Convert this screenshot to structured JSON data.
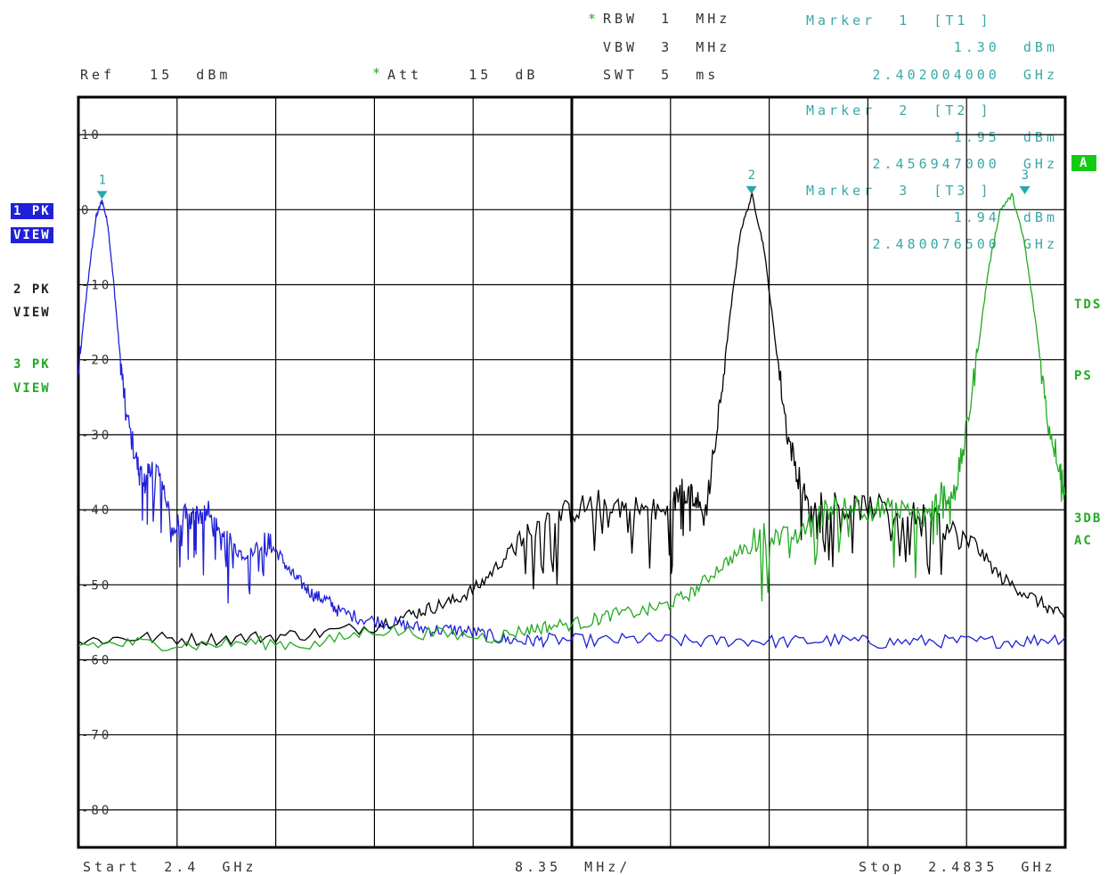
{
  "header": {
    "rbw_star": "*",
    "rbw": "RBW  1  MHz",
    "vbw": "VBW  3  MHz",
    "swt": "SWT  5  ms",
    "ref": "Ref   15  dBm",
    "att_star": "*",
    "att": "Att    15  dB"
  },
  "markers_readout": [
    {
      "label": "Marker  1  [T1 ]",
      "level": "1.30  dBm",
      "freq": "2.402004000  GHz"
    },
    {
      "label": "Marker  2  [T2 ]",
      "level": "1.95  dBm",
      "freq": "2.456947000  GHz"
    },
    {
      "label": "Marker  3  [T3 ]",
      "level": "1.94  dBm",
      "freq": "2.480076500  GHz"
    }
  ],
  "traces_panel": [
    {
      "label": "1 PK",
      "mode": "VIEW",
      "color": "#2020d8",
      "active": true
    },
    {
      "label": "2 PK",
      "mode": "VIEW",
      "color": "#000000",
      "active": false
    },
    {
      "label": "3 PK",
      "mode": "VIEW",
      "color": "#22aa22",
      "active": false
    }
  ],
  "right_panel": {
    "a": "A",
    "tds": "TDS",
    "ps": "PS",
    "db3": "3DB",
    "ac": "AC"
  },
  "footer": {
    "start": "Start  2.4  GHz",
    "span": "8.35  MHz/",
    "stop": "Stop  2.4835  GHz"
  },
  "chart_data": {
    "type": "line",
    "x_unit": "GHz",
    "y_unit": "dBm",
    "xlim": [
      2.4,
      2.4835
    ],
    "ylim": [
      -85,
      15
    ],
    "y_ticks": [
      10,
      0,
      -10,
      -20,
      -30,
      -40,
      -50,
      -60,
      -70,
      -80
    ],
    "y_tick_labels": [
      "10",
      "0",
      "-10",
      "-20",
      "-30",
      "-40",
      "-50",
      "-60",
      "-70",
      "-80"
    ],
    "grid": true,
    "series": [
      {
        "name": "1",
        "color": "#2020d8",
        "x": [
          2.4,
          2.4005,
          2.401,
          2.4015,
          2.402,
          2.4025,
          2.403,
          2.4035,
          2.404,
          2.405,
          2.4055,
          2.406,
          2.407,
          2.408,
          2.409,
          2.4095,
          2.41,
          2.411,
          2.412,
          2.413,
          2.414,
          2.415,
          2.416,
          2.417,
          2.418,
          2.419,
          2.42,
          2.421,
          2.422,
          2.424,
          2.426,
          2.428,
          2.43,
          2.432,
          2.434,
          2.436,
          2.438,
          2.44,
          2.444,
          2.448,
          2.452,
          2.456,
          2.46,
          2.464,
          2.468,
          2.472,
          2.476,
          2.48,
          2.4835
        ],
        "y": [
          -22,
          -14,
          -7,
          -1,
          1.3,
          -2,
          -10,
          -19,
          -27,
          -34,
          -37,
          -35,
          -35,
          -43,
          -41,
          -41.5,
          -40.5,
          -40.5,
          -44,
          -45,
          -46,
          -45,
          -44.5,
          -46,
          -48.5,
          -50,
          -51.5,
          -52,
          -53.5,
          -54.5,
          -55,
          -55.5,
          -56,
          -56,
          -56.5,
          -57.3,
          -57.5,
          -57.3,
          -57.5,
          -57.2,
          -57.6,
          -57.4,
          -57.6,
          -57.4,
          -57.7,
          -57.5,
          -57.6,
          -57.5,
          -57
        ]
      },
      {
        "name": "2",
        "color": "#000000",
        "x": [
          2.4,
          2.405,
          2.41,
          2.415,
          2.42,
          2.425,
          2.428,
          2.43,
          2.432,
          2.434,
          2.436,
          2.438,
          2.44,
          2.442,
          2.444,
          2.446,
          2.448,
          2.45,
          2.451,
          2.452,
          2.453,
          2.454,
          2.455,
          2.456,
          2.457,
          2.458,
          2.459,
          2.46,
          2.461,
          2.462,
          2.463,
          2.465,
          2.467,
          2.47,
          2.472,
          2.474,
          2.476,
          2.478,
          2.48,
          2.482,
          2.4835
        ],
        "y": [
          -57.5,
          -57,
          -57.3,
          -57,
          -56.5,
          -55.5,
          -54,
          -53,
          -52,
          -50,
          -46.5,
          -43,
          -41,
          -40,
          -39,
          -39.5,
          -40,
          -40.5,
          -37,
          -38,
          -41,
          -30,
          -16,
          -3,
          1.95,
          -5,
          -18,
          -30,
          -36,
          -41,
          -38,
          -40,
          -39.5,
          -40.5,
          -41,
          -43,
          -45,
          -49,
          -51,
          -53,
          -54.5
        ]
      },
      {
        "name": "3",
        "color": "#22aa22",
        "x": [
          2.4,
          2.405,
          2.41,
          2.415,
          2.42,
          2.425,
          2.43,
          2.435,
          2.438,
          2.44,
          2.443,
          2.445,
          2.448,
          2.45,
          2.452,
          2.454,
          2.456,
          2.458,
          2.46,
          2.462,
          2.464,
          2.466,
          2.468,
          2.47,
          2.472,
          2.473,
          2.474,
          2.475,
          2.476,
          2.477,
          2.478,
          2.479,
          2.48,
          2.481,
          2.482,
          2.483,
          2.4835
        ],
        "y": [
          -58,
          -57.8,
          -58,
          -57.7,
          -58,
          -56,
          -56.5,
          -57,
          -56,
          -55.5,
          -55,
          -54,
          -53.5,
          -52.5,
          -51,
          -48,
          -45.5,
          -43,
          -44,
          -42,
          -39,
          -39.5,
          -40,
          -40.5,
          -41,
          -38,
          -38.5,
          -31,
          -20,
          -8,
          0,
          1.94,
          -4,
          -15,
          -28,
          -34,
          -38
        ]
      }
    ],
    "markers": [
      {
        "label": "1",
        "x": 2.402004,
        "y": 1.3,
        "color": "#2aa8a8"
      },
      {
        "label": "2",
        "x": 2.456947,
        "y": 1.95,
        "color": "#2aa8a8"
      },
      {
        "label": "3",
        "x": 2.4800765,
        "y": 1.94,
        "color": "#2aa8a8"
      }
    ]
  }
}
